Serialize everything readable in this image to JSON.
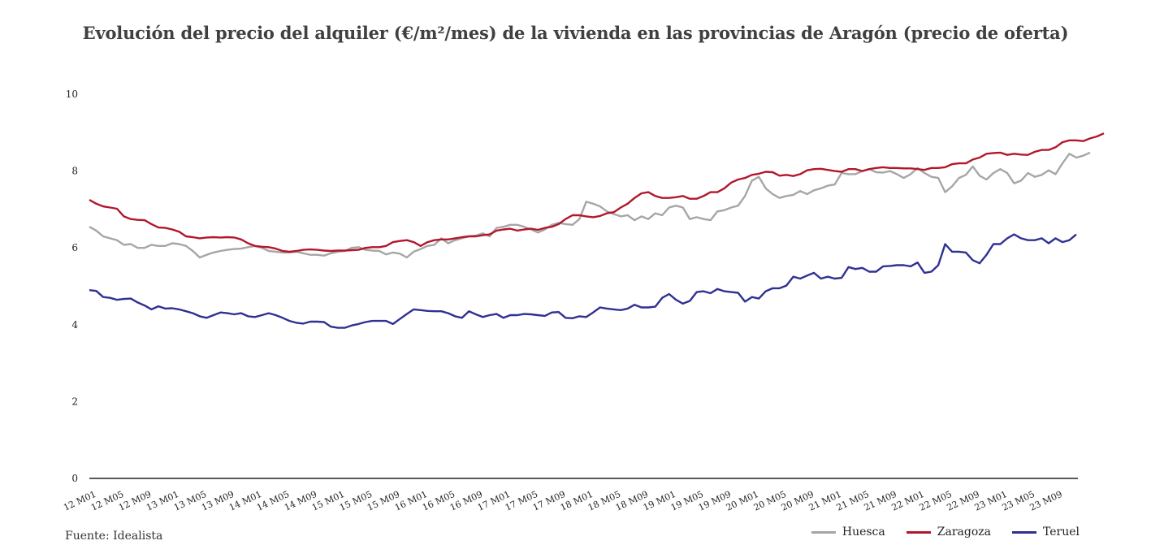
{
  "title": "Evolución del precio del alquiler (€/m²/mes) de la vivienda en las provincias de Aragón (precio de oferta)",
  "source": "Fuente: Idealista",
  "colors": {
    "Huesca": "#a6a6a6",
    "Zaragoza": "#b2172b",
    "Teruel": "#2e3192"
  },
  "chart_data": {
    "type": "line",
    "title": "Evolución del precio del alquiler (€/m²/mes) de la vivienda en las provincias de Aragón (precio de oferta)",
    "xlabel": "",
    "ylabel": "",
    "ylim": [
      0,
      10
    ],
    "yticks": [
      0,
      2,
      4,
      6,
      8,
      10
    ],
    "grid": false,
    "legend_position": "bottom-right",
    "x_tick_labels": [
      "12 M01",
      "12 M05",
      "12 M09",
      "13 M01",
      "13 M05",
      "13 M09",
      "14 M01",
      "14 M05",
      "14 M09",
      "15 M01",
      "15 M05",
      "15 M09",
      "16 M01",
      "16 M05",
      "16 M09",
      "17 M01",
      "17 M05",
      "17 M09",
      "18 M01",
      "18 M05",
      "18 M09",
      "19 M01",
      "19 M05",
      "19 M09",
      "20 M01",
      "20 M05",
      "20 M09",
      "21 M01",
      "21 M05",
      "21 M09",
      "22 M01",
      "22 M05",
      "22 M09",
      "23 M01",
      "23 M05",
      "23 M09"
    ],
    "x_start": "12 M01",
    "x_end": "23 M12",
    "n_points": 144,
    "series": [
      {
        "name": "Huesca",
        "values": [
          6.55,
          6.45,
          6.3,
          6.25,
          6.2,
          6.08,
          6.1,
          6.0,
          6.0,
          6.08,
          6.05,
          6.05,
          6.12,
          6.1,
          6.05,
          5.92,
          5.75,
          5.82,
          5.88,
          5.92,
          5.95,
          5.97,
          5.98,
          6.02,
          6.05,
          6.0,
          5.92,
          5.9,
          5.88,
          5.88,
          5.9,
          5.86,
          5.82,
          5.82,
          5.8,
          5.86,
          5.9,
          5.92,
          6.0,
          6.02,
          5.95,
          5.93,
          5.92,
          5.83,
          5.88,
          5.85,
          5.75,
          5.9,
          5.97,
          6.05,
          6.08,
          6.25,
          6.12,
          6.2,
          6.25,
          6.3,
          6.32,
          6.38,
          6.3,
          6.52,
          6.55,
          6.6,
          6.6,
          6.55,
          6.48,
          6.4,
          6.48,
          6.6,
          6.65,
          6.62,
          6.6,
          6.75,
          7.2,
          7.15,
          7.08,
          6.95,
          6.88,
          6.82,
          6.85,
          6.72,
          6.82,
          6.75,
          6.9,
          6.85,
          7.05,
          7.1,
          7.05,
          6.75,
          6.8,
          6.75,
          6.72,
          6.95,
          6.98,
          7.05,
          7.1,
          7.35,
          7.75,
          7.85,
          7.55,
          7.4,
          7.3,
          7.35,
          7.38,
          7.48,
          7.4,
          7.5,
          7.55,
          7.62,
          7.65,
          7.95,
          7.92,
          7.92,
          8.0,
          8.05,
          7.97,
          7.96,
          8.0,
          7.92,
          7.82,
          7.92,
          8.08,
          7.95,
          7.85,
          7.82,
          7.45,
          7.6,
          7.82,
          7.9,
          8.12,
          7.88,
          7.78,
          7.95,
          8.05,
          7.95,
          7.68,
          7.75,
          7.95,
          7.85,
          7.9,
          8.02,
          7.92,
          8.2,
          8.45,
          8.35,
          8.4,
          8.48
        ]
      },
      {
        "name": "Zaragoza",
        "values": [
          7.25,
          7.15,
          7.08,
          7.05,
          7.02,
          6.82,
          6.75,
          6.73,
          6.72,
          6.62,
          6.53,
          6.52,
          6.48,
          6.42,
          6.3,
          6.28,
          6.25,
          6.27,
          6.28,
          6.27,
          6.28,
          6.27,
          6.22,
          6.12,
          6.05,
          6.03,
          6.02,
          5.98,
          5.92,
          5.9,
          5.92,
          5.95,
          5.96,
          5.95,
          5.93,
          5.92,
          5.93,
          5.93,
          5.94,
          5.95,
          6.0,
          6.02,
          6.02,
          6.05,
          6.15,
          6.18,
          6.2,
          6.15,
          6.05,
          6.15,
          6.2,
          6.22,
          6.22,
          6.25,
          6.28,
          6.3,
          6.3,
          6.33,
          6.35,
          6.45,
          6.48,
          6.5,
          6.45,
          6.48,
          6.5,
          6.47,
          6.52,
          6.55,
          6.62,
          6.75,
          6.85,
          6.85,
          6.82,
          6.8,
          6.83,
          6.9,
          6.93,
          7.05,
          7.15,
          7.3,
          7.42,
          7.45,
          7.35,
          7.3,
          7.3,
          7.32,
          7.35,
          7.28,
          7.28,
          7.35,
          7.45,
          7.45,
          7.55,
          7.7,
          7.78,
          7.82,
          7.9,
          7.93,
          7.98,
          7.97,
          7.88,
          7.9,
          7.87,
          7.92,
          8.02,
          8.05,
          8.06,
          8.03,
          8.0,
          7.98,
          8.05,
          8.05,
          8.0,
          8.05,
          8.08,
          8.1,
          8.08,
          8.08,
          8.07,
          8.07,
          8.05,
          8.03,
          8.08,
          8.08,
          8.1,
          8.18,
          8.2,
          8.2,
          8.3,
          8.35,
          8.45,
          8.47,
          8.48,
          8.42,
          8.45,
          8.43,
          8.42,
          8.5,
          8.55,
          8.55,
          8.62,
          8.75,
          8.8,
          8.8,
          8.78,
          8.85,
          8.9,
          8.98
        ]
      },
      {
        "name": "Teruel",
        "values": [
          4.9,
          4.88,
          4.72,
          4.7,
          4.65,
          4.67,
          4.68,
          4.58,
          4.5,
          4.4,
          4.48,
          4.42,
          4.43,
          4.4,
          4.35,
          4.3,
          4.22,
          4.18,
          4.25,
          4.32,
          4.3,
          4.27,
          4.3,
          4.22,
          4.2,
          4.25,
          4.3,
          4.25,
          4.18,
          4.1,
          4.05,
          4.03,
          4.08,
          4.08,
          4.07,
          3.95,
          3.92,
          3.92,
          3.98,
          4.02,
          4.07,
          4.1,
          4.1,
          4.1,
          4.02,
          4.15,
          4.28,
          4.4,
          4.38,
          4.36,
          4.35,
          4.35,
          4.3,
          4.22,
          4.18,
          4.35,
          4.27,
          4.2,
          4.25,
          4.28,
          4.18,
          4.25,
          4.25,
          4.28,
          4.27,
          4.25,
          4.23,
          4.32,
          4.33,
          4.18,
          4.17,
          4.22,
          4.2,
          4.32,
          4.45,
          4.42,
          4.4,
          4.38,
          4.42,
          4.52,
          4.45,
          4.45,
          4.47,
          4.7,
          4.8,
          4.65,
          4.55,
          4.62,
          4.85,
          4.87,
          4.82,
          4.93,
          4.87,
          4.85,
          4.83,
          4.6,
          4.72,
          4.68,
          4.87,
          4.95,
          4.95,
          5.02,
          5.25,
          5.2,
          5.28,
          5.35,
          5.2,
          5.25,
          5.2,
          5.22,
          5.5,
          5.45,
          5.48,
          5.38,
          5.38,
          5.52,
          5.53,
          5.55,
          5.55,
          5.52,
          5.62,
          5.35,
          5.38,
          5.55,
          6.1,
          5.9,
          5.9,
          5.88,
          5.68,
          5.6,
          5.82,
          6.1,
          6.1,
          6.25,
          6.35,
          6.25,
          6.2,
          6.2,
          6.25,
          6.12,
          6.25,
          6.15,
          6.2,
          6.35
        ]
      }
    ]
  },
  "legend": [
    {
      "label": "Huesca"
    },
    {
      "label": "Zaragoza"
    },
    {
      "label": "Teruel"
    }
  ]
}
